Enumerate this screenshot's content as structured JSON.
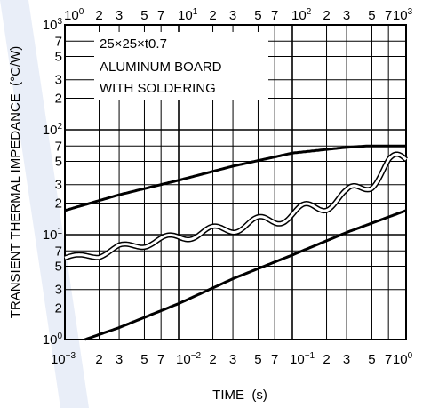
{
  "chart_data": {
    "type": "line",
    "xlabel": "TIME  (s)",
    "ylabel": "TRANSIENT THERMAL IMPEDANCE  (°C/W)",
    "xscale": "log",
    "yscale": "log",
    "grid": true,
    "bottom_x_range": [
      0.001,
      1
    ],
    "top_x_range": [
      1,
      1000
    ],
    "y_range": [
      1,
      1000
    ],
    "bottom_x_ticks": [
      {
        "base": "10",
        "exp": "−3",
        "value": 0.001
      },
      {
        "label": "2",
        "value": 0.002
      },
      {
        "label": "3",
        "value": 0.003
      },
      {
        "label": "5",
        "value": 0.005
      },
      {
        "label": "7",
        "value": 0.007
      },
      {
        "base": "10",
        "exp": "−2",
        "value": 0.01
      },
      {
        "label": "2",
        "value": 0.02
      },
      {
        "label": "3",
        "value": 0.03
      },
      {
        "label": "5",
        "value": 0.05
      },
      {
        "label": "7",
        "value": 0.07
      },
      {
        "base": "10",
        "exp": "−1",
        "value": 0.1
      },
      {
        "label": "2",
        "value": 0.2
      },
      {
        "label": "3",
        "value": 0.3
      },
      {
        "label": "5",
        "value": 0.5
      },
      {
        "label": "7",
        "value": 0.7
      },
      {
        "base": "10",
        "exp": "0",
        "value": 1
      }
    ],
    "top_x_ticks": [
      {
        "base": "10",
        "exp": "0",
        "value": 1
      },
      {
        "label": "2",
        "value": 2
      },
      {
        "label": "3",
        "value": 3
      },
      {
        "label": "5",
        "value": 5
      },
      {
        "label": "7",
        "value": 7
      },
      {
        "base": "10",
        "exp": "1",
        "value": 10
      },
      {
        "label": "2",
        "value": 20
      },
      {
        "label": "3",
        "value": 30
      },
      {
        "label": "5",
        "value": 50
      },
      {
        "label": "7",
        "value": 70
      },
      {
        "base": "10",
        "exp": "2",
        "value": 100
      },
      {
        "label": "2",
        "value": 200
      },
      {
        "label": "3",
        "value": 300
      },
      {
        "label": "5",
        "value": 500
      },
      {
        "label": "7",
        "value": 700
      },
      {
        "base": "10",
        "exp": "3",
        "value": 1000
      }
    ],
    "y_ticks": [
      {
        "base": "10",
        "exp": "0",
        "value": 1
      },
      {
        "label": "2",
        "value": 2
      },
      {
        "label": "3",
        "value": 3
      },
      {
        "label": "5",
        "value": 5
      },
      {
        "label": "7",
        "value": 7
      },
      {
        "base": "10",
        "exp": "1",
        "value": 10
      },
      {
        "label": "2",
        "value": 20
      },
      {
        "label": "3",
        "value": 30
      },
      {
        "label": "5",
        "value": 50
      },
      {
        "label": "7",
        "value": 70
      },
      {
        "base": "10",
        "exp": "2",
        "value": 100
      },
      {
        "label": "2",
        "value": 200
      },
      {
        "label": "3",
        "value": 300
      },
      {
        "label": "5",
        "value": 500
      },
      {
        "label": "7",
        "value": 700
      },
      {
        "base": "10",
        "exp": "3",
        "value": 1000
      }
    ],
    "annotations": [
      "25×25×t0.7",
      "ALUMINUM BOARD",
      "WITH SOLDERING"
    ],
    "series": [
      {
        "style": "solid",
        "x_axis": "top",
        "x": [
          1,
          3,
          10,
          30,
          100,
          300,
          450,
          1000
        ],
        "y": [
          17,
          24,
          33,
          45,
          60,
          68,
          70,
          70
        ]
      },
      {
        "style": "solid",
        "x_axis": "bottom",
        "x": [
          0.0015,
          0.003,
          0.01,
          0.03,
          0.1,
          0.3,
          1
        ],
        "y": [
          1,
          1.3,
          2.2,
          3.8,
          6.4,
          10.5,
          17
        ]
      },
      {
        "style": "double-outline-wavy",
        "x_axis": "bottom",
        "x": [
          0.001,
          0.002,
          0.003,
          0.005,
          0.01,
          0.02,
          0.05,
          0.1,
          0.2,
          0.3,
          0.5,
          0.7,
          1
        ],
        "y": [
          6,
          6.4,
          7.5,
          8.2,
          9.5,
          10.8,
          13,
          15.5,
          20,
          23,
          33,
          46,
          52
        ]
      }
    ]
  }
}
